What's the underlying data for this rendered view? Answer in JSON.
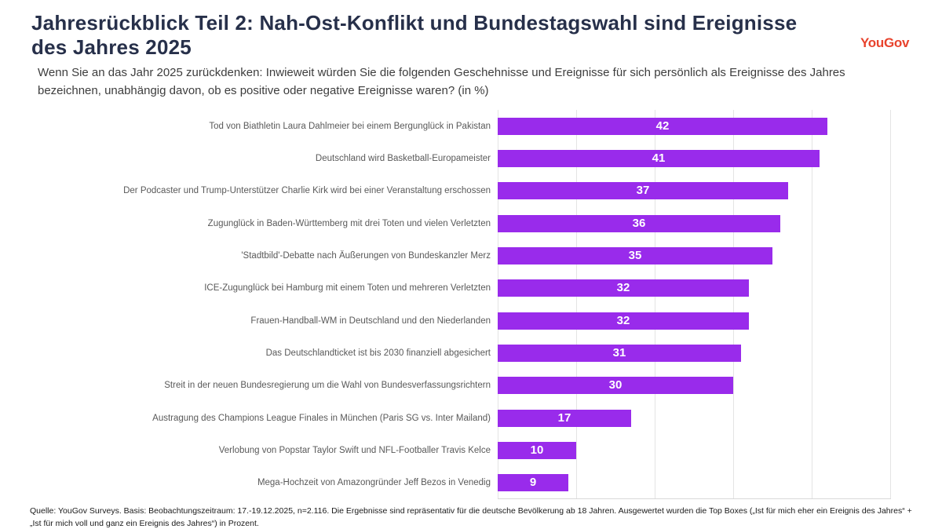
{
  "header": {
    "title": "Jahresrückblick Teil 2: Nah-Ost-Konflikt und Bundestagswahl sind Ereignisse des Jahres 2025",
    "logo_text": "YouGov",
    "logo_color": "#E8432D"
  },
  "subtitle": "Wenn Sie an das Jahr 2025 zurückdenken: Inwieweit würden Sie die folgenden Geschehnisse und Ereignisse für sich persönlich als Ereignisse des Jahres bezeichnen, unabhängig davon, ob es positive oder negative Ereignisse waren? (in %)",
  "chart_data": {
    "type": "bar",
    "orientation": "horizontal",
    "categories": [
      "Tod von Biathletin Laura Dahlmeier bei einem Bergunglück in Pakistan",
      "Deutschland wird Basketball-Europameister",
      "Der Podcaster und Trump-Unterstützer Charlie Kirk wird bei einer Veranstaltung erschossen",
      "Zugunglück in Baden-Württemberg mit drei Toten und vielen Verletzten",
      "'Stadtbild'-Debatte nach Äußerungen von Bundeskanzler Merz",
      "ICE-Zugunglück bei Hamburg mit einem Toten und mehreren Verletzten",
      "Frauen-Handball-WM in Deutschland und den Niederlanden",
      "Das Deutschlandticket ist bis 2030 finanziell abgesichert",
      "Streit in der neuen Bundesregierung um die Wahl von Bundesverfassungsrichtern",
      "Austragung des Champions League Finales in München (Paris SG vs. Inter Mailand)",
      "Verlobung von Popstar Taylor Swift und NFL-Footballer Travis Kelce",
      "Mega-Hochzeit von Amazongründer Jeff Bezos in Venedig"
    ],
    "values": [
      42,
      41,
      37,
      36,
      35,
      32,
      32,
      31,
      30,
      17,
      10,
      9
    ],
    "unit": "%",
    "xlim": [
      0,
      50
    ],
    "grid_step": 10,
    "grid": true,
    "legend": false,
    "bar_color": "#992BEB",
    "value_label_color": "#FFFFFF"
  },
  "footer": {
    "source": "Quelle: YouGov Surveys. Basis: Beobachtungszeitraum: 17.-19.12.2025, n=2.116. Die Ergebnisse sind repräsentativ für die deutsche Bevölkerung ab 18 Jahren. Ausgewertet wurden die Top Boxes („Ist für mich eher ein Ereignis des Jahres“ + „Ist für mich voll und ganz ein Ereignis des Jahres“) in Prozent."
  }
}
